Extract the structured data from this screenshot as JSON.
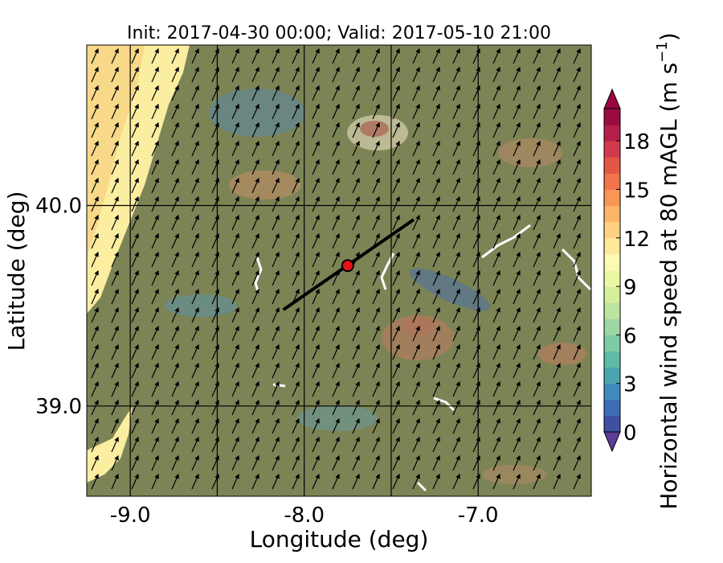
{
  "map": {
    "title": "Init: 2017-04-30 00:00; Valid: 2017-05-10 21:00",
    "xlabel": "Longitude (deg)",
    "ylabel": "Latitude (deg)",
    "x_ticks": [
      {
        "value": -9.0,
        "label": "-9.0"
      },
      {
        "value": -8.0,
        "label": "-8.0"
      },
      {
        "value": -7.0,
        "label": "-7.0"
      }
    ],
    "y_ticks": [
      {
        "value": 40.0,
        "label": "40.0"
      },
      {
        "value": 39.0,
        "label": "39.0"
      }
    ],
    "xlim": [
      -9.25,
      -6.35
    ],
    "ylim": [
      38.55,
      40.8
    ],
    "gridlines": true,
    "wind_arrow_direction": "toward the north-northeast",
    "marked_point": {
      "lon": -7.75,
      "lat": 39.7,
      "color": "#e8121a"
    },
    "transect_line": {
      "lon": [
        -8.12,
        -7.37
      ],
      "lat": [
        39.48,
        39.93
      ]
    },
    "coastline_color": "#f5d77a",
    "land_color": "#7c8456"
  },
  "colorbar": {
    "label": "Horizontal wind speed at 80 mAGL (m s",
    "label_superscript": "−1",
    "label_suffix": ")",
    "min": 0,
    "max": 20,
    "step": 1,
    "tick_values": [
      0,
      3,
      6,
      9,
      12,
      15,
      18
    ],
    "tick_labels": [
      "0",
      "3",
      "6",
      "9",
      "12",
      "15",
      "18"
    ],
    "extend": "both",
    "colormap": "Spectral_r",
    "colors": [
      "#3f4fa2",
      "#3b6db4",
      "#3f8abd",
      "#4ba5b1",
      "#5fbaa6",
      "#7dcaa5",
      "#9dd8a4",
      "#bce5a0",
      "#d6ef9b",
      "#ecf7a3",
      "#fbf9b3",
      "#fee99a",
      "#fed280",
      "#fdb567",
      "#f99555",
      "#f2744a",
      "#e35646",
      "#cf3b4c",
      "#b51f4a",
      "#9a0b42"
    ],
    "under_color": "#5e3c99",
    "over_color": "#9e0142"
  }
}
